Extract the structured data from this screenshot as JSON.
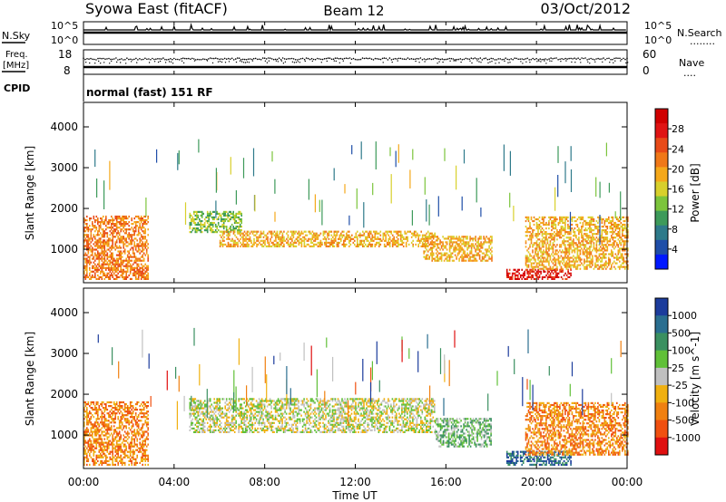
{
  "header": {
    "left": "Syowa East (fitACF)",
    "center": "Beam 12",
    "right": "03/Oct/2012"
  },
  "sky_panel": {
    "left_label": "N.Sky",
    "right_label": "N.Search",
    "right_legend_line": "........",
    "left_ticks": [
      "10^5",
      "10^0"
    ],
    "right_ticks": [
      "10^5",
      "10^0"
    ]
  },
  "freq_panel": {
    "left_label": "Freq.",
    "unit_label": "[MHz]",
    "right_label": "Nave",
    "right_legend_line": "....",
    "left_ticks": [
      "18",
      "8"
    ],
    "right_ticks": [
      "60",
      "0"
    ]
  },
  "cpid": {
    "label": "CPID",
    "mode": "normal (fast) 151 RF"
  },
  "x_axis": {
    "label": "Time UT",
    "ticks": [
      "00:00",
      "04:00",
      "08:00",
      "12:00",
      "16:00",
      "20:00",
      "00:00"
    ]
  },
  "chart_data": [
    {
      "type": "heatmap",
      "title": "Power",
      "xlabel": "Time UT",
      "ylabel": "Slant Range [km]",
      "ylim": [
        180,
        4600
      ],
      "xlim": [
        "00:00",
        "24:00"
      ],
      "y_ticks": [
        "1000",
        "2000",
        "3000",
        "4000"
      ],
      "colorbar": {
        "label": "Power [dB]",
        "ticks": [
          "4",
          "8",
          "12",
          "16",
          "20",
          "24",
          "28"
        ],
        "range": [
          0,
          32
        ],
        "colors": [
          "#0018ff",
          "#1f4ea8",
          "#2e7a8a",
          "#3d9a5a",
          "#7cc43c",
          "#d8d02c",
          "#f5a81a",
          "#f07818",
          "#e84a18",
          "#e01414",
          "#d00000"
        ]
      },
      "echo_regions": [
        {
          "start": "00:00",
          "end": "02:50",
          "range_min": 250,
          "range_max": 1800,
          "dominant_power": 22
        },
        {
          "start": "04:40",
          "end": "07:00",
          "range_min": 1400,
          "range_max": 1900,
          "dominant_power": 12
        },
        {
          "start": "06:00",
          "end": "15:30",
          "range_min": 1050,
          "range_max": 1450,
          "dominant_power": 20
        },
        {
          "start": "15:00",
          "end": "18:00",
          "range_min": 700,
          "range_max": 1300,
          "dominant_power": 20
        },
        {
          "start": "18:40",
          "end": "21:30",
          "range_min": 250,
          "range_max": 500,
          "dominant_power": 28
        },
        {
          "start": "19:30",
          "end": "24:00",
          "range_min": 500,
          "range_max": 1800,
          "dominant_power": 18
        }
      ]
    },
    {
      "type": "heatmap",
      "title": "Velocity",
      "xlabel": "Time UT",
      "ylabel": "Slant Range [km]",
      "ylim": [
        180,
        4600
      ],
      "xlim": [
        "00:00",
        "24:00"
      ],
      "y_ticks": [
        "1000",
        "2000",
        "3000",
        "4000"
      ],
      "colorbar": {
        "label": "Velocity [m s^-1]",
        "ticks": [
          "1000",
          "500",
          "100",
          "25",
          "-25",
          "-100",
          "-500",
          "-1000"
        ],
        "colors": [
          "#1c3c9c",
          "#2a6e90",
          "#3a9060",
          "#60c038",
          "#c0c0c0",
          "#f0b010",
          "#f08010",
          "#f05010",
          "#e01010"
        ]
      },
      "echo_regions": [
        {
          "start": "00:00",
          "end": "02:50",
          "range_min": 250,
          "range_max": 1800,
          "dominant_velocity": -300
        },
        {
          "start": "04:40",
          "end": "15:30",
          "range_min": 1050,
          "range_max": 1900,
          "dominant_velocity": 0
        },
        {
          "start": "15:30",
          "end": "18:00",
          "range_min": 700,
          "range_max": 1400,
          "dominant_velocity": 200
        },
        {
          "start": "18:40",
          "end": "21:30",
          "range_min": 250,
          "range_max": 600,
          "dominant_velocity": 500
        },
        {
          "start": "19:30",
          "end": "24:00",
          "range_min": 500,
          "range_max": 1800,
          "dominant_velocity": -300
        }
      ]
    }
  ]
}
